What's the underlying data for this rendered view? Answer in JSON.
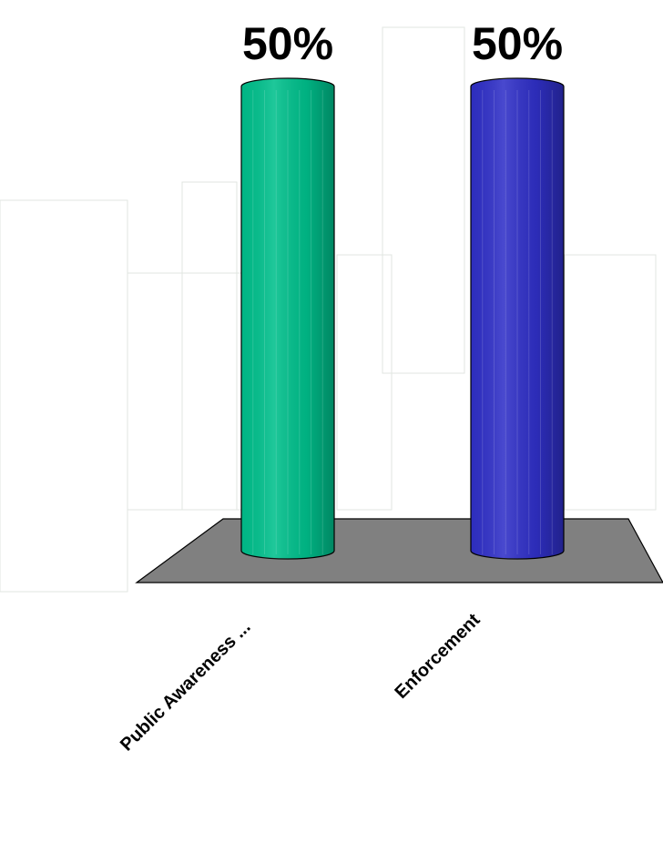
{
  "chart_data": {
    "type": "bar3d",
    "categories": [
      "Public Awareness ...",
      "Enforcement"
    ],
    "values": [
      50,
      50
    ],
    "value_labels": [
      "50%",
      "50%"
    ],
    "colors": [
      "#00c08c",
      "#3030c8"
    ]
  }
}
